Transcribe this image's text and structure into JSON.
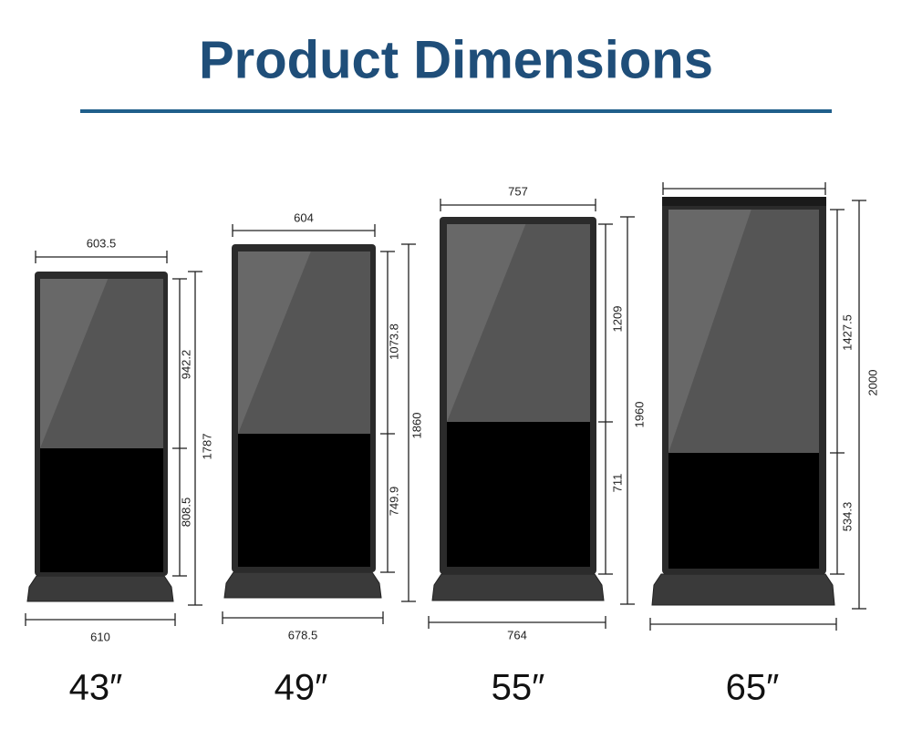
{
  "header": {
    "title": "Product Dimensions"
  },
  "products": [
    {
      "size": "43″",
      "top_width": "603.5",
      "bottom_width": "610",
      "upper_height": "942.2",
      "lower_height": "808.5",
      "total_height": "1787"
    },
    {
      "size": "49″",
      "top_width": "604",
      "bottom_width": "678.5",
      "upper_height": "1073.8",
      "lower_height": "749.9",
      "total_height": "1860"
    },
    {
      "size": "55″",
      "top_width": "757",
      "bottom_width": "764",
      "upper_height": "1209",
      "lower_height": "711",
      "total_height": "1960"
    },
    {
      "size": "65″",
      "bottom_width": "",
      "upper_height": "1427.5",
      "lower_height": "534.3",
      "total_height": "2000"
    }
  ]
}
